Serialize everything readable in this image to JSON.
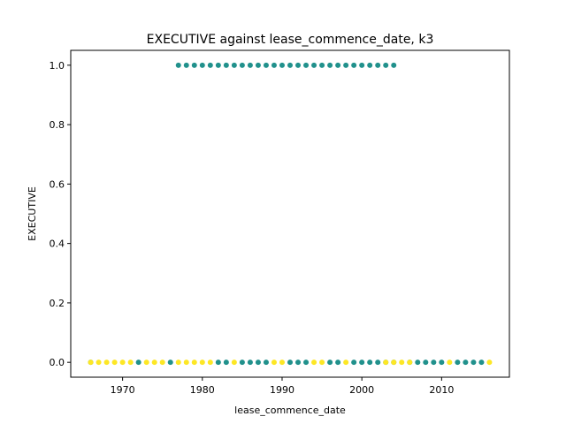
{
  "chart_data": {
    "type": "scatter",
    "title": "EXECUTIVE against lease_commence_date, k3",
    "xlabel": "lease_commence_date",
    "ylabel": "EXECUTIVE",
    "xlim": [
      1963.5,
      2018.5
    ],
    "ylim": [
      -0.05,
      1.05
    ],
    "xticks": [
      1970,
      1980,
      1990,
      2000,
      2010
    ],
    "xtick_labels": [
      "1970",
      "1980",
      "1990",
      "2000",
      "2010"
    ],
    "yticks": [
      0.0,
      0.2,
      0.4,
      0.6,
      0.8,
      1.0
    ],
    "ytick_labels": [
      "0.0",
      "0.2",
      "0.4",
      "0.6",
      "0.8",
      "1.0"
    ],
    "grid": false,
    "colors": {
      "teal": "#21918c",
      "yellow": "#fde725"
    },
    "series": [
      {
        "color": "#21918c",
        "points": [
          [
            1977,
            1
          ],
          [
            1978,
            1
          ],
          [
            1979,
            1
          ],
          [
            1980,
            1
          ],
          [
            1981,
            1
          ],
          [
            1982,
            1
          ],
          [
            1983,
            1
          ],
          [
            1984,
            1
          ],
          [
            1985,
            1
          ],
          [
            1986,
            1
          ],
          [
            1987,
            1
          ],
          [
            1988,
            1
          ],
          [
            1989,
            1
          ],
          [
            1990,
            1
          ],
          [
            1991,
            1
          ],
          [
            1992,
            1
          ],
          [
            1993,
            1
          ],
          [
            1994,
            1
          ],
          [
            1995,
            1
          ],
          [
            1996,
            1
          ],
          [
            1997,
            1
          ],
          [
            1998,
            1
          ],
          [
            1999,
            1
          ],
          [
            2000,
            1
          ],
          [
            2001,
            1
          ],
          [
            2002,
            1
          ],
          [
            2003,
            1
          ],
          [
            2004,
            1
          ],
          [
            1966,
            0
          ],
          [
            1972,
            0
          ],
          [
            1976,
            0
          ],
          [
            1982,
            0
          ],
          [
            1983,
            0
          ],
          [
            1985,
            0
          ],
          [
            1986,
            0
          ],
          [
            1987,
            0
          ],
          [
            1988,
            0
          ],
          [
            1991,
            0
          ],
          [
            1992,
            0
          ],
          [
            1993,
            0
          ],
          [
            1996,
            0
          ],
          [
            1997,
            0
          ],
          [
            1999,
            0
          ],
          [
            2000,
            0
          ],
          [
            2001,
            0
          ],
          [
            2002,
            0
          ],
          [
            2003,
            0
          ],
          [
            2004,
            0
          ],
          [
            2006,
            0
          ],
          [
            2007,
            0
          ],
          [
            2008,
            0
          ],
          [
            2009,
            0
          ],
          [
            2010,
            0
          ],
          [
            2012,
            0
          ],
          [
            2013,
            0
          ],
          [
            2014,
            0
          ],
          [
            2015,
            0
          ]
        ]
      },
      {
        "color": "#fde725",
        "points": [
          [
            1966,
            0
          ],
          [
            1967,
            0
          ],
          [
            1968,
            0
          ],
          [
            1969,
            0
          ],
          [
            1970,
            0
          ],
          [
            1971,
            0
          ],
          [
            1973,
            0
          ],
          [
            1974,
            0
          ],
          [
            1975,
            0
          ],
          [
            1977,
            0
          ],
          [
            1978,
            0
          ],
          [
            1979,
            0
          ],
          [
            1980,
            0
          ],
          [
            1981,
            0
          ],
          [
            1984,
            0
          ],
          [
            1989,
            0
          ],
          [
            1990,
            0
          ],
          [
            1994,
            0
          ],
          [
            1995,
            0
          ],
          [
            1998,
            0
          ],
          [
            2003,
            0
          ],
          [
            2004,
            0
          ],
          [
            2005,
            0
          ],
          [
            2006,
            0
          ],
          [
            2011,
            0
          ],
          [
            2016,
            0
          ]
        ]
      }
    ]
  }
}
